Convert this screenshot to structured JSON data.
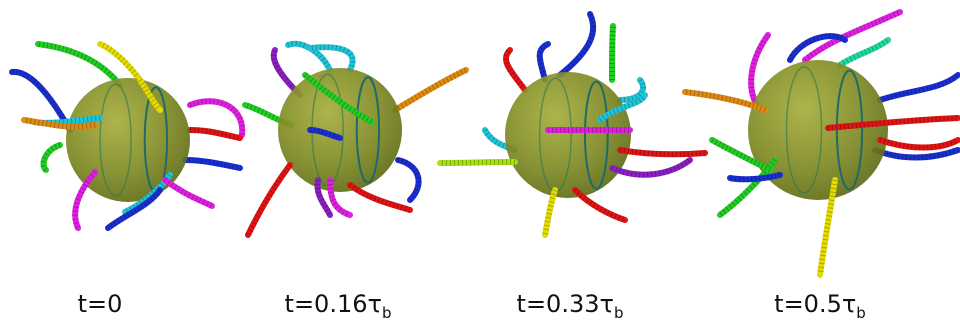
{
  "captions": [
    {
      "text": "t=0"
    },
    {
      "text": "t=0.16τ",
      "sub": "b"
    },
    {
      "text": "t=0.33τ",
      "sub": "b"
    },
    {
      "text": "t=0.5τ",
      "sub": "b"
    }
  ]
}
